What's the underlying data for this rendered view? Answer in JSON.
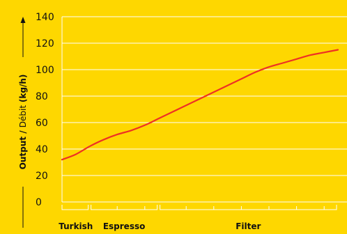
{
  "chart_data": {
    "type": "line",
    "y_ticks": [
      "0",
      "20",
      "40",
      "60",
      "80",
      "100",
      "120",
      "140"
    ],
    "ylim": [
      0,
      140
    ],
    "xlim": [
      0,
      20
    ],
    "grid": "horizontal",
    "ylabel": {
      "bold_part": "Output",
      "separator": " / ",
      "normal_part": "Débit ",
      "unit": "(kg/h)"
    },
    "categories": [
      {
        "label": "Turkish",
        "range": [
          0,
          2
        ]
      },
      {
        "label": "Espresso",
        "range": [
          2,
          7
        ]
      },
      {
        "label": "Filter",
        "range": [
          7,
          20
        ]
      }
    ],
    "series": [
      {
        "color": "#ee3124",
        "x": [
          0,
          1,
          2,
          3,
          4,
          5,
          6,
          7,
          8,
          9,
          10,
          11,
          12,
          13,
          14,
          15,
          16,
          17,
          18,
          19,
          20
        ],
        "y": [
          32,
          36,
          42,
          47,
          51,
          54,
          58,
          63,
          68,
          73,
          78,
          83,
          88,
          93,
          98,
          102,
          105,
          108,
          111,
          113,
          115
        ]
      }
    ],
    "colors": {
      "background": "#fed700",
      "axis": "#ffffff",
      "text": "#111111"
    }
  }
}
